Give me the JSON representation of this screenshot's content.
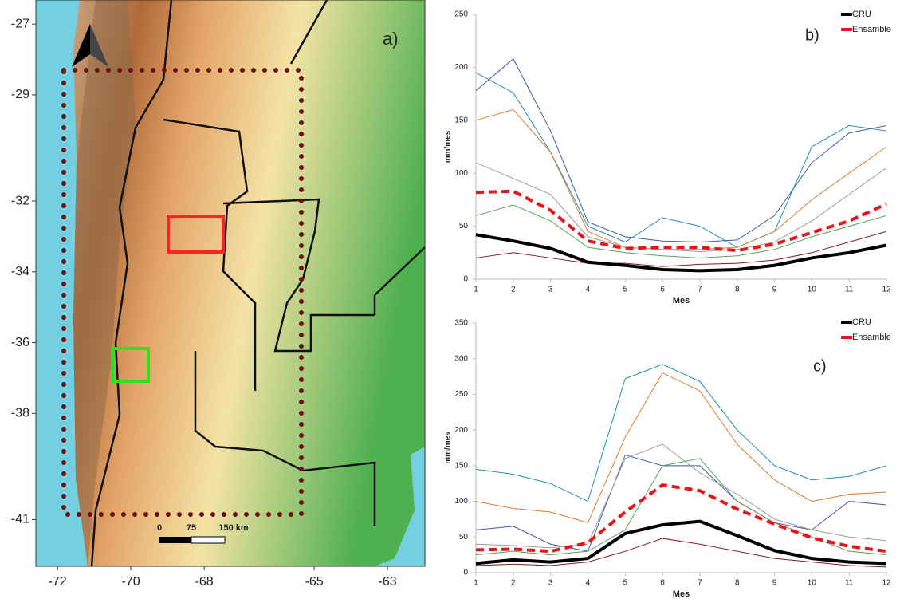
{
  "map": {
    "label": "a)",
    "xlim": [
      -72.59,
      -61.98
    ],
    "ylim": [
      -42.32,
      -26.32
    ],
    "xticks": [
      -72,
      -70,
      -68,
      -65,
      -63
    ],
    "yticks": [
      -27,
      -29,
      -32,
      -34,
      -36,
      -38,
      -41
    ],
    "scale_labels": [
      "0",
      "75",
      "150 km"
    ]
  },
  "chart_data": [
    {
      "type": "line",
      "title": "b)",
      "x_label": "Mes",
      "y_label": "mm/mes",
      "x": [
        1,
        2,
        3,
        4,
        5,
        6,
        7,
        8,
        9,
        10,
        11,
        12
      ],
      "xlim": [
        1,
        12
      ],
      "xticks": [
        1,
        2,
        3,
        4,
        5,
        6,
        7,
        8,
        9,
        10,
        11,
        12
      ],
      "ylim": [
        0,
        250
      ],
      "yticks": [
        0,
        50,
        100,
        150,
        200,
        250
      ],
      "series": [
        {
          "color": "#3b5ba5",
          "values": [
            178,
            208,
            140,
            54,
            40,
            36,
            35,
            37,
            60,
            110,
            138,
            145
          ]
        },
        {
          "color": "#1f8fb0",
          "values": [
            195,
            176,
            120,
            50,
            35,
            58,
            50,
            30,
            45,
            125,
            145,
            140
          ]
        },
        {
          "color": "#e07b2a",
          "values": [
            150,
            160,
            120,
            45,
            30,
            28,
            28,
            30,
            45,
            75,
            100,
            125
          ]
        },
        {
          "color": "#5aa05a",
          "values": [
            60,
            70,
            55,
            30,
            25,
            22,
            20,
            22,
            28,
            40,
            50,
            60
          ]
        },
        {
          "color": "#9a9a9a",
          "values": [
            110,
            95,
            80,
            40,
            30,
            28,
            26,
            28,
            35,
            55,
            80,
            105
          ]
        },
        {
          "color": "#8b1a1a",
          "values": [
            20,
            25,
            20,
            15,
            15,
            12,
            14,
            15,
            18,
            25,
            35,
            45
          ]
        },
        {
          "name": "CRU",
          "color": "#000000",
          "width": 4,
          "values": [
            42,
            36,
            29,
            16,
            13,
            9,
            8,
            9,
            13,
            20,
            25,
            32
          ]
        },
        {
          "name": "Ensamble",
          "color": "#e8141b",
          "width": 4,
          "dash": true,
          "values": [
            82,
            83,
            65,
            36,
            29,
            30,
            30,
            27,
            33,
            44,
            55,
            71
          ]
        }
      ]
    },
    {
      "type": "line",
      "title": "c)",
      "x_label": "Mes",
      "y_label": "mm/mes",
      "x": [
        1,
        2,
        3,
        4,
        5,
        6,
        7,
        8,
        9,
        10,
        11,
        12
      ],
      "xlim": [
        1,
        12
      ],
      "xticks": [
        1,
        2,
        3,
        4,
        5,
        6,
        7,
        8,
        9,
        10,
        11,
        12
      ],
      "ylim": [
        0,
        350
      ],
      "yticks": [
        0,
        50,
        100,
        150,
        200,
        250,
        300,
        350
      ],
      "series": [
        {
          "color": "#1f8fb0",
          "values": [
            145,
            138,
            125,
            100,
            272,
            292,
            268,
            200,
            150,
            130,
            135,
            150
          ]
        },
        {
          "color": "#e07b2a",
          "values": [
            100,
            90,
            85,
            70,
            190,
            280,
            255,
            180,
            130,
            100,
            110,
            113
          ]
        },
        {
          "color": "#3b5ba5",
          "values": [
            60,
            65,
            40,
            30,
            165,
            150,
            150,
            100,
            70,
            60,
            100,
            95
          ]
        },
        {
          "color": "#9a9a9a",
          "values": [
            40,
            38,
            35,
            40,
            160,
            180,
            140,
            110,
            75,
            60,
            50,
            45
          ]
        },
        {
          "color": "#5aa05a",
          "values": [
            25,
            30,
            25,
            30,
            60,
            150,
            160,
            100,
            70,
            50,
            30,
            25
          ]
        },
        {
          "color": "#8b1a1a",
          "values": [
            10,
            12,
            10,
            15,
            30,
            48,
            40,
            30,
            20,
            15,
            10,
            8
          ]
        },
        {
          "name": "CRU",
          "color": "#000000",
          "width": 4,
          "values": [
            13,
            18,
            15,
            20,
            55,
            67,
            72,
            52,
            31,
            20,
            15,
            13
          ]
        },
        {
          "name": "Ensamble",
          "color": "#e8141b",
          "width": 4,
          "dash": true,
          "values": [
            32,
            33,
            30,
            42,
            85,
            123,
            115,
            89,
            68,
            49,
            37,
            30
          ]
        }
      ]
    }
  ]
}
